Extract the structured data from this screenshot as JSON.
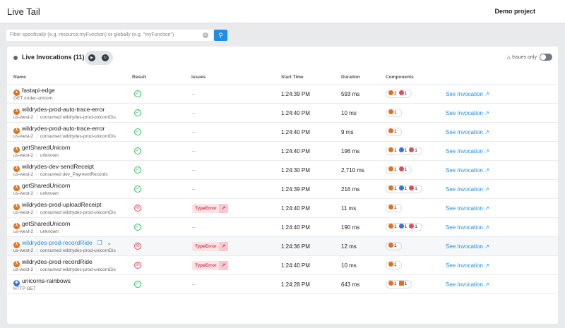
{
  "header": {
    "title": "Live Tail",
    "project": "Demo project"
  },
  "search": {
    "placeholder": "Filter specifically (e.g. resource:myFunction) or globally (e.g. \"myFunction\")"
  },
  "card": {
    "title": "Live Invocations (11)",
    "issues_only": "Issues only",
    "issues_only_on": false
  },
  "columns": [
    "Name",
    "Result",
    "Issues",
    "Start Time",
    "Duration",
    "Components"
  ],
  "colors": {
    "lambda": "#e0701e",
    "error": "#e24a5b",
    "blue": "#3b6fd8",
    "api": "#e0701e",
    "link": "#1e8ee8"
  },
  "see_label": "See Invocation",
  "rows": [
    {
      "name": "fastapi-edge",
      "icon": "fastapi",
      "sub": [
        "GET /order-unicorn"
      ],
      "result": "ok",
      "issue": "–",
      "start": "1:24:39 PM",
      "duration": "593 ms",
      "components": [
        {
          "t": "lambda",
          "n": "2"
        },
        {
          "t": "error",
          "n": "1"
        }
      ]
    },
    {
      "name": "wildrydes-prod-auto-trace-error",
      "icon": "lambda",
      "sub": [
        "us-west-2",
        "consumed wildrydes-prod-unicornDis"
      ],
      "result": "ok",
      "issue": "–",
      "start": "1:24:40 PM",
      "duration": "10 ms",
      "components": [
        {
          "t": "lambda",
          "n": "1"
        }
      ]
    },
    {
      "name": "wildrydes-prod-auto-trace-error",
      "icon": "lambda",
      "sub": [
        "us-west-2",
        "consumed wildrydes-prod-unicornDis"
      ],
      "result": "ok",
      "issue": "–",
      "start": "1:24:40 PM",
      "duration": "9 ms",
      "components": [
        {
          "t": "lambda",
          "n": "1"
        }
      ]
    },
    {
      "name": "getSharedUnicorn",
      "icon": "lambda",
      "sub": [
        "us-west-2",
        "unknown"
      ],
      "result": "ok",
      "issue": "–",
      "start": "1:24:40 PM",
      "duration": "196 ms",
      "components": [
        {
          "t": "lambda",
          "n": "1"
        },
        {
          "t": "blue",
          "n": "1"
        },
        {
          "t": "error",
          "n": "1"
        }
      ]
    },
    {
      "name": "wildrydes-dev-sendReceipt",
      "icon": "lambda",
      "sub": [
        "us-west-2",
        "consumed dev_PaymentRecords"
      ],
      "result": "ok",
      "issue": "–",
      "start": "1:24:30 PM",
      "duration": "2,710 ms",
      "components": [
        {
          "t": "lambda",
          "n": "1"
        },
        {
          "t": "error",
          "n": "1"
        }
      ]
    },
    {
      "name": "getSharedUnicorn",
      "icon": "lambda",
      "sub": [
        "us-west-2",
        "unknown"
      ],
      "result": "ok",
      "issue": "–",
      "start": "1:24:39 PM",
      "duration": "216 ms",
      "components": [
        {
          "t": "lambda",
          "n": "1"
        },
        {
          "t": "blue",
          "n": "1"
        },
        {
          "t": "error",
          "n": "1"
        }
      ]
    },
    {
      "name": "wildrydes-prod-uploadReceipt",
      "icon": "lambda",
      "sub": [
        "us-west-2",
        "consumed wildrydes-prod-unicornDis"
      ],
      "result": "error",
      "issue": "TypeError",
      "start": "1:24:40 PM",
      "duration": "11 ms",
      "components": [
        {
          "t": "lambda",
          "n": "1"
        }
      ]
    },
    {
      "name": "getSharedUnicorn",
      "icon": "lambda",
      "sub": [
        "us-west-2",
        "unknown"
      ],
      "result": "ok",
      "issue": "–",
      "start": "1:24:40 PM",
      "duration": "190 ms",
      "components": [
        {
          "t": "lambda",
          "n": "1"
        },
        {
          "t": "blue",
          "n": "1"
        },
        {
          "t": "error",
          "n": "1"
        }
      ]
    },
    {
      "name": "wildrydes-prod-recordRide",
      "icon": "lambda",
      "hover": true,
      "sub": [
        "us-west-2",
        "consumed wildrydes-prod-unicornDis"
      ],
      "result": "error",
      "issue": "TypeError",
      "start": "1:24:36 PM",
      "duration": "12 ms",
      "components": [
        {
          "t": "lambda",
          "n": "1"
        }
      ]
    },
    {
      "name": "wildrydes-prod-recordRide",
      "icon": "lambda",
      "sub": [
        "us-west-2",
        "consumed wildrydes-prod-unicornDis"
      ],
      "result": "error",
      "issue": "TypeError",
      "start": "1:24:40 PM",
      "duration": "10 ms",
      "components": [
        {
          "t": "lambda",
          "n": "1"
        }
      ]
    },
    {
      "name": "unicorns-rainbows",
      "icon": "k8s",
      "sub": [
        "HTTP GET"
      ],
      "result": "ok",
      "issue": "–",
      "start": "1:24:28 PM",
      "duration": "643 ms",
      "components": [
        {
          "t": "lambda",
          "n": "1"
        },
        {
          "t": "api",
          "n": "1"
        }
      ]
    }
  ]
}
